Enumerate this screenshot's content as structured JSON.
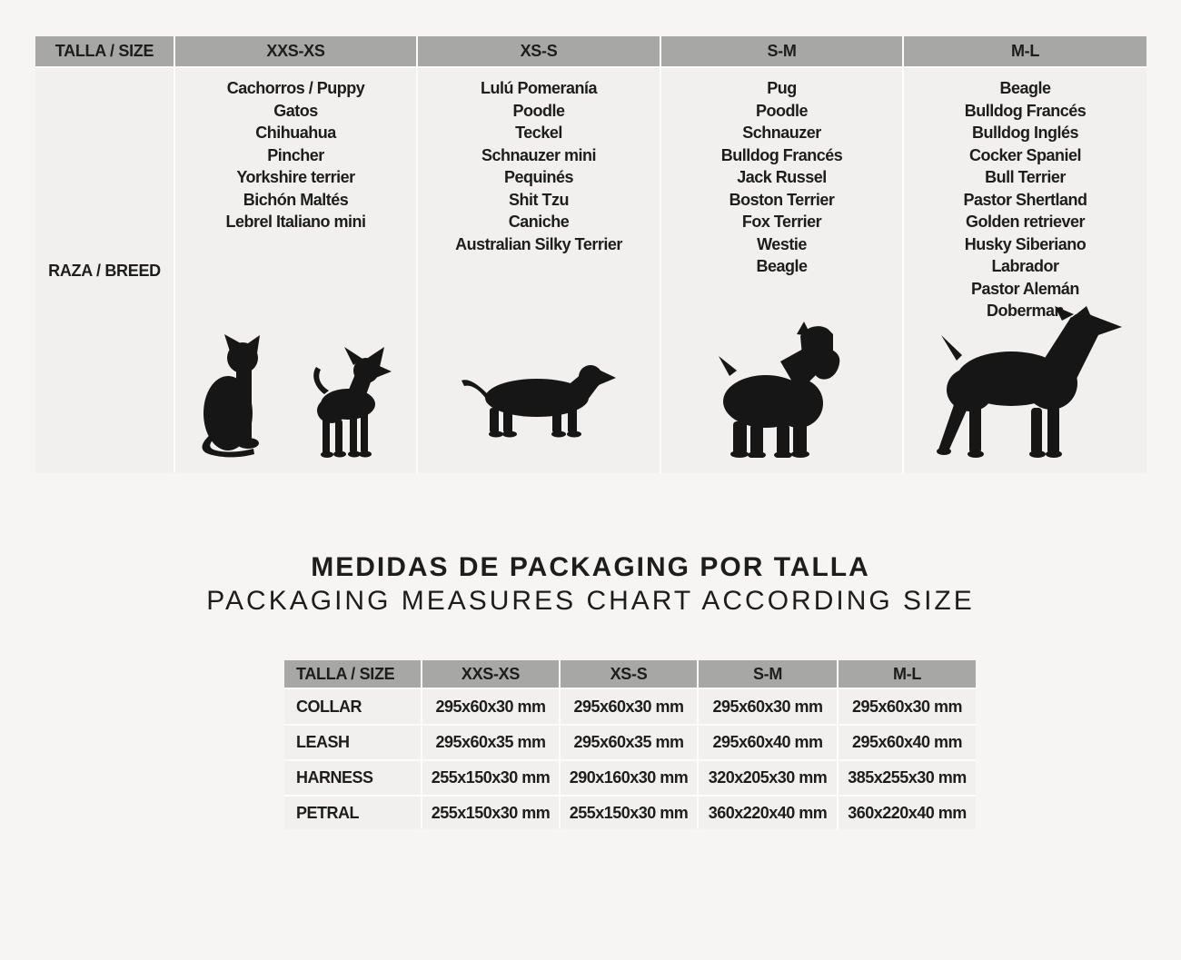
{
  "colors": {
    "page_background": "#f6f5f4",
    "header_gray": "#a7a7a6",
    "cell_gray": "#f1f0ee",
    "text": "#1d1d1b",
    "silhouette": "#161616"
  },
  "breed_table": {
    "corner_label": "TALLA /  SIZE",
    "row_label": "RAZA / BREED",
    "columns": [
      {
        "size": "XXS-XS",
        "breeds": [
          "Cachorros / Puppy",
          "Gatos",
          "Chihuahua",
          "Pincher",
          "Yorkshire terrier",
          "Bichón Maltés",
          "Lebrel Italiano mini"
        ],
        "icons": [
          "cat",
          "chihuahua"
        ]
      },
      {
        "size": "XS-S",
        "breeds": [
          "Lulú Pomeranía",
          "Poodle",
          "Teckel",
          "Schnauzer mini",
          "Pequinés",
          "Shit Tzu",
          "Caniche",
          "Australian Silky Terrier"
        ],
        "icons": [
          "dachshund"
        ]
      },
      {
        "size": "S-M",
        "breeds": [
          "Pug",
          "Poodle",
          "Schnauzer",
          "Bulldog Francés",
          "Jack Russel",
          "Boston Terrier",
          "Fox Terrier",
          "Westie",
          "Beagle"
        ],
        "icons": [
          "schnauzer"
        ]
      },
      {
        "size": "M-L",
        "breeds": [
          "Beagle",
          "Bulldog Francés",
          "Bulldog Inglés",
          "Cocker Spaniel",
          "Bull Terrier",
          "Pastor Shertland",
          "Golden retriever",
          "Husky Siberiano",
          "Labrador",
          "Pastor Alemán",
          "Doberman"
        ],
        "icons": [
          "doberman"
        ]
      }
    ]
  },
  "packaging_section": {
    "title": "MEDIDAS DE PACKAGING POR TALLA",
    "subtitle": "PACKAGING MEASURES CHART ACCORDING SIZE",
    "table": {
      "corner_label": "TALLA /  SIZE",
      "size_columns": [
        "XXS-XS",
        "XS-S",
        "S-M",
        "M-L"
      ],
      "rows": [
        {
          "label": "COLLAR",
          "values": [
            "295x60x30 mm",
            "295x60x30 mm",
            "295x60x30 mm",
            "295x60x30 mm"
          ]
        },
        {
          "label": "LEASH",
          "values": [
            "295x60x35 mm",
            "295x60x35 mm",
            "295x60x40 mm",
            "295x60x40 mm"
          ]
        },
        {
          "label": "HARNESS",
          "values": [
            "255x150x30 mm",
            "290x160x30 mm",
            "320x205x30 mm",
            "385x255x30 mm"
          ]
        },
        {
          "label": "PETRAL",
          "values": [
            "255x150x30 mm",
            "255x150x30 mm",
            "360x220x40 mm",
            "360x220x40 mm"
          ]
        }
      ]
    }
  }
}
